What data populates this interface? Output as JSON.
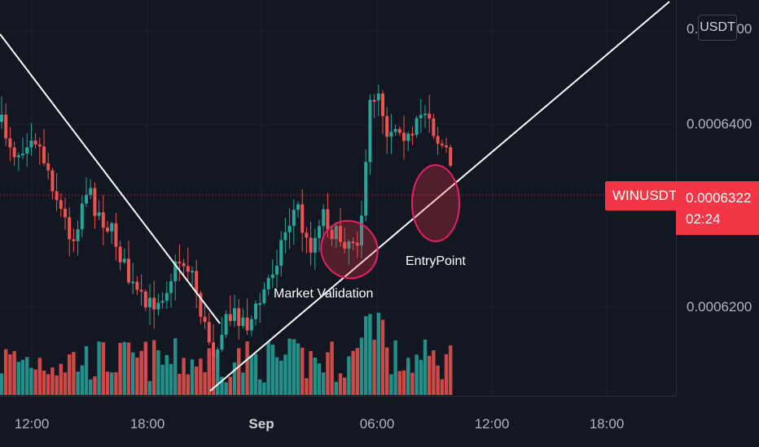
{
  "symbol": "WINUSDT",
  "currency_button": "USDT",
  "last_price": "0.0006322",
  "countdown": "02:24",
  "price_axis": {
    "ticks": [
      "0.0006400",
      "0.0006200"
    ],
    "top_tick_partial": "0.0006600"
  },
  "time_axis": {
    "ticks": [
      {
        "label": "12:00",
        "bold": false
      },
      {
        "label": "18:00",
        "bold": false
      },
      {
        "label": "Sep",
        "bold": true
      },
      {
        "label": "06:00",
        "bold": false
      },
      {
        "label": "12:00",
        "bold": false
      },
      {
        "label": "18:00",
        "bold": false
      }
    ]
  },
  "annotations": {
    "market_validation": "Market Validation",
    "entry_point": "EntryPoint"
  },
  "colors": {
    "background": "#131722",
    "up": "#26a69a",
    "down": "#ef5350",
    "label_red": "#f23645",
    "trendline": "#ffffff"
  }
}
